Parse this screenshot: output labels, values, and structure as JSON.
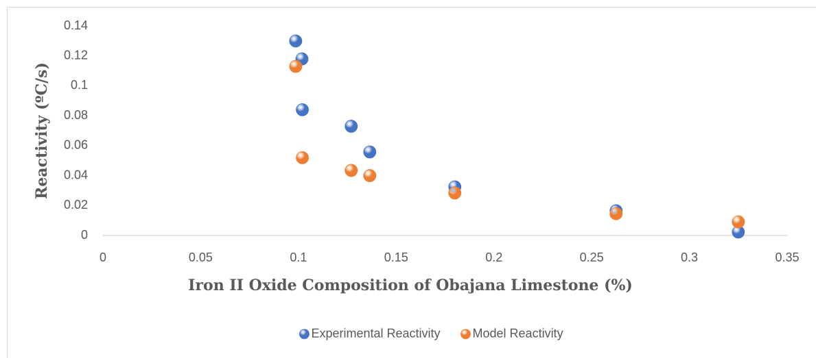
{
  "chart_data": {
    "type": "scatter",
    "xlabel": "Iron II Oxide Composition of Obajana Limestone (%)",
    "ylabel": "Reactivity (ºC/s)",
    "xlim": [
      0,
      0.35
    ],
    "xticks": [
      0,
      0.05,
      0.1,
      0.15,
      0.2,
      0.25,
      0.3,
      0.35
    ],
    "ylim": [
      0,
      0.14
    ],
    "yticks": [
      0,
      0.02,
      0.04,
      0.06,
      0.08,
      0.1,
      0.12,
      0.14
    ],
    "grid": false,
    "legend": "bottom",
    "series": [
      {
        "name": "Experimental Reactivity",
        "color": "#4472c4",
        "x": [
          0.0986,
          0.1018,
          0.102,
          0.127,
          0.1365,
          0.18,
          0.2625,
          0.325
        ],
        "values": [
          0.13,
          0.118,
          0.084,
          0.073,
          0.0558,
          0.0325,
          0.0165,
          0.0023
        ]
      },
      {
        "name": "Model Reactivity",
        "color": "#ed7d31",
        "x": [
          0.0986,
          0.102,
          0.127,
          0.1365,
          0.18,
          0.2625,
          0.325
        ],
        "values": [
          0.113,
          0.052,
          0.0435,
          0.04,
          0.0284,
          0.0146,
          0.0091
        ]
      }
    ]
  }
}
